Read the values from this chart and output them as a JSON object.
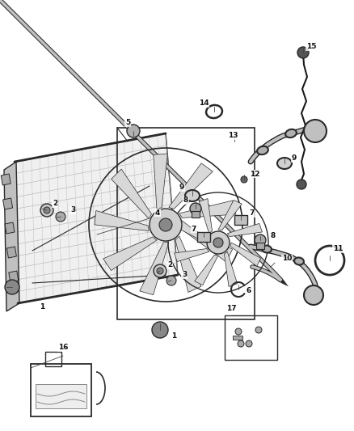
{
  "bg_color": "#ffffff",
  "lc": "#2a2a2a",
  "fig_width": 4.38,
  "fig_height": 5.33,
  "dpi": 100
}
